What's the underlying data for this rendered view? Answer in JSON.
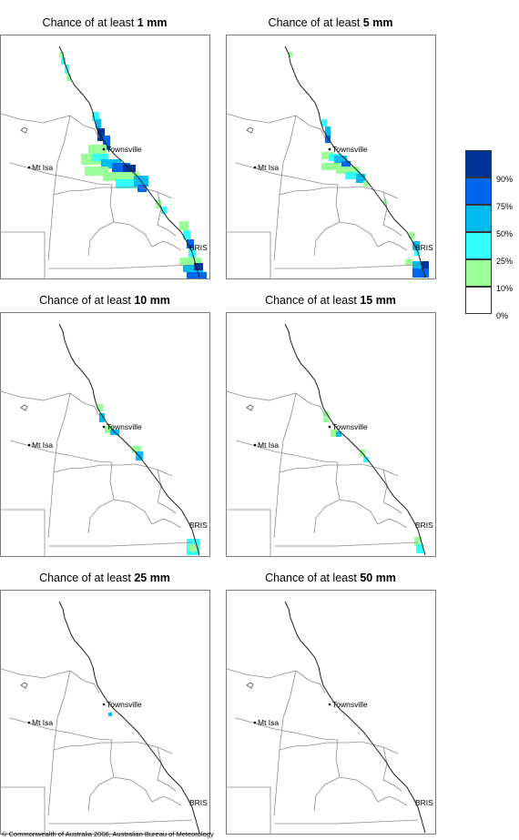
{
  "panels": [
    {
      "title_prefix": "Chance of at least ",
      "title_value": "1 mm",
      "level": 0
    },
    {
      "title_prefix": "Chance of at least ",
      "title_value": "5 mm",
      "level": 1
    },
    {
      "title_prefix": "Chance of at least ",
      "title_value": "10 mm",
      "level": 2
    },
    {
      "title_prefix": "Chance of at least ",
      "title_value": "15 mm",
      "level": 3
    },
    {
      "title_prefix": "Chance of at least ",
      "title_value": "25 mm",
      "level": 4
    },
    {
      "title_prefix": "Chance of at least ",
      "title_value": "50 mm",
      "level": 5
    }
  ],
  "map_labels": {
    "townsville": "Townsville",
    "mt_isa": "Mt Isa",
    "brisbane": "BRIS"
  },
  "legend": {
    "labels": [
      "90%",
      "75%",
      "50%",
      "25%",
      "10%",
      "0%"
    ],
    "colors": [
      "#003399",
      "#0066ee",
      "#00bbee",
      "#33ffff",
      "#99ff99",
      "#ffffff"
    ]
  },
  "copyright": "© Commonwealth of Australia 2006, Australian Bureau of Meteorology"
}
